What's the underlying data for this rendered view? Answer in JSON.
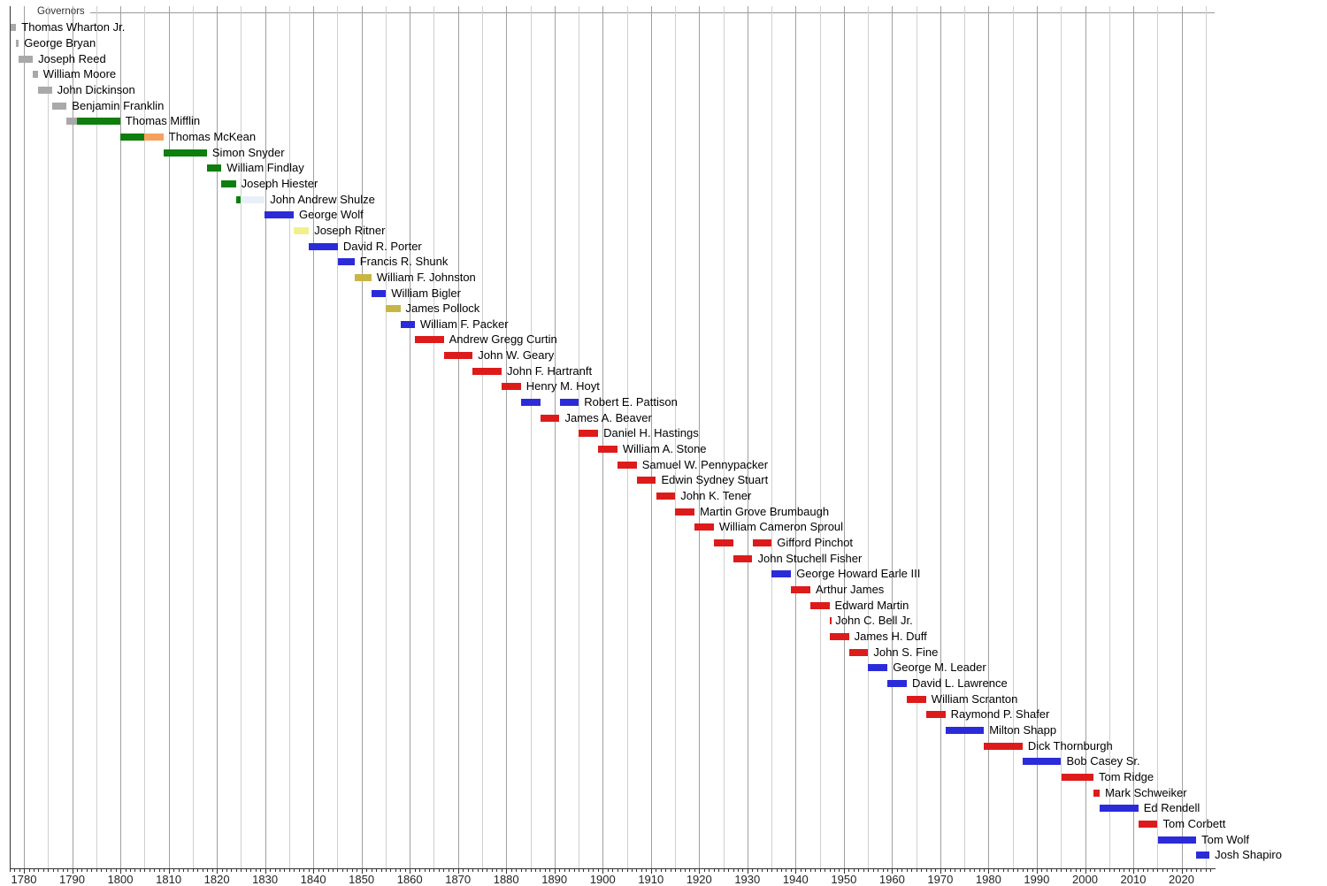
{
  "chart_data": {
    "type": "bar",
    "subtype": "timeline-gantt",
    "title": "Governors",
    "grid": true,
    "x_axis": {
      "min_year": 1777,
      "max_year": 2027,
      "gridline_interval_years": 5,
      "tick_interval_years": 1,
      "labels": [
        "1780",
        "1790",
        "1800",
        "1810",
        "1820",
        "1830",
        "1840",
        "1850",
        "1860",
        "1870",
        "1880",
        "1890",
        "1900",
        "1910",
        "1920",
        "1930",
        "1940",
        "1950",
        "1960",
        "1970",
        "1980",
        "1990",
        "2000",
        "2010",
        "2020"
      ]
    },
    "colors": {
      "gray": "#a9a9a9",
      "green": "#0e7e0e",
      "orange": "#f7a160",
      "pale_blue": "#e9eff7",
      "blue": "#2b2bd9",
      "pale_yellow": "#f1f08d",
      "dark_khaki": "#c9b545",
      "red": "#dd1b1b"
    },
    "governors": [
      {
        "name": "Thomas Wharton Jr.",
        "terms": [
          {
            "start": 1777.2,
            "end": 1778.4,
            "color": "gray"
          }
        ]
      },
      {
        "name": "George Bryan",
        "terms": [
          {
            "start": 1778.4,
            "end": 1778.95,
            "color": "gray"
          }
        ]
      },
      {
        "name": "Joseph Reed",
        "terms": [
          {
            "start": 1778.95,
            "end": 1781.85,
            "color": "gray"
          }
        ]
      },
      {
        "name": "William Moore",
        "terms": [
          {
            "start": 1781.85,
            "end": 1782.9,
            "color": "gray"
          }
        ]
      },
      {
        "name": "John Dickinson",
        "terms": [
          {
            "start": 1782.9,
            "end": 1785.8,
            "color": "gray"
          }
        ]
      },
      {
        "name": "Benjamin Franklin",
        "terms": [
          {
            "start": 1785.8,
            "end": 1788.85,
            "color": "gray"
          }
        ]
      },
      {
        "name": "Thomas Mifflin",
        "terms": [
          {
            "start": 1788.85,
            "end": 1790.95,
            "color": "gray"
          },
          {
            "start": 1790.95,
            "end": 1799.95,
            "color": "green"
          }
        ]
      },
      {
        "name": "Thomas McKean",
        "terms": [
          {
            "start": 1799.95,
            "end": 1805.0,
            "color": "green"
          },
          {
            "start": 1805.0,
            "end": 1808.95,
            "color": "orange"
          }
        ]
      },
      {
        "name": "Simon Snyder",
        "terms": [
          {
            "start": 1808.95,
            "end": 1817.95,
            "color": "green"
          }
        ]
      },
      {
        "name": "William Findlay",
        "terms": [
          {
            "start": 1817.95,
            "end": 1820.95,
            "color": "green"
          }
        ]
      },
      {
        "name": "Joseph Hiester",
        "terms": [
          {
            "start": 1820.95,
            "end": 1823.95,
            "color": "green"
          }
        ]
      },
      {
        "name": "John Andrew Shulze",
        "terms": [
          {
            "start": 1823.95,
            "end": 1824.95,
            "color": "green"
          },
          {
            "start": 1824.95,
            "end": 1829.95,
            "color": "pale_blue"
          }
        ]
      },
      {
        "name": "George Wolf",
        "terms": [
          {
            "start": 1829.95,
            "end": 1835.95,
            "color": "blue"
          }
        ]
      },
      {
        "name": "Joseph Ritner",
        "terms": [
          {
            "start": 1835.95,
            "end": 1839.1,
            "color": "pale_yellow"
          }
        ]
      },
      {
        "name": "David R. Porter",
        "terms": [
          {
            "start": 1839.1,
            "end": 1845.1,
            "color": "blue"
          }
        ]
      },
      {
        "name": "Francis R. Shunk",
        "terms": [
          {
            "start": 1845.1,
            "end": 1848.55,
            "color": "blue"
          }
        ]
      },
      {
        "name": "William F. Johnston",
        "terms": [
          {
            "start": 1848.55,
            "end": 1852.05,
            "color": "dark_khaki"
          }
        ]
      },
      {
        "name": "William Bigler",
        "terms": [
          {
            "start": 1852.05,
            "end": 1855.05,
            "color": "blue"
          }
        ]
      },
      {
        "name": "James Pollock",
        "terms": [
          {
            "start": 1855.05,
            "end": 1858.05,
            "color": "dark_khaki"
          }
        ]
      },
      {
        "name": "William F. Packer",
        "terms": [
          {
            "start": 1858.05,
            "end": 1861.05,
            "color": "blue"
          }
        ]
      },
      {
        "name": "Andrew Gregg Curtin",
        "terms": [
          {
            "start": 1861.05,
            "end": 1867.05,
            "color": "red"
          }
        ]
      },
      {
        "name": "John W. Geary",
        "terms": [
          {
            "start": 1867.05,
            "end": 1873.05,
            "color": "red"
          }
        ]
      },
      {
        "name": "John F. Hartranft",
        "terms": [
          {
            "start": 1873.05,
            "end": 1879.05,
            "color": "red"
          }
        ]
      },
      {
        "name": "Henry M. Hoyt",
        "terms": [
          {
            "start": 1879.05,
            "end": 1883.05,
            "color": "red"
          }
        ]
      },
      {
        "name": "Robert E. Pattison",
        "terms": [
          {
            "start": 1883.05,
            "end": 1887.05,
            "color": "blue"
          },
          {
            "start": 1891.05,
            "end": 1895.05,
            "color": "blue"
          }
        ]
      },
      {
        "name": "James A. Beaver",
        "terms": [
          {
            "start": 1887.05,
            "end": 1891.05,
            "color": "red"
          }
        ]
      },
      {
        "name": "Daniel H. Hastings",
        "terms": [
          {
            "start": 1895.05,
            "end": 1899.05,
            "color": "red"
          }
        ]
      },
      {
        "name": "William A. Stone",
        "terms": [
          {
            "start": 1899.05,
            "end": 1903.05,
            "color": "red"
          }
        ]
      },
      {
        "name": "Samuel W. Pennypacker",
        "terms": [
          {
            "start": 1903.05,
            "end": 1907.05,
            "color": "red"
          }
        ]
      },
      {
        "name": "Edwin Sydney Stuart",
        "terms": [
          {
            "start": 1907.05,
            "end": 1911.05,
            "color": "red"
          }
        ]
      },
      {
        "name": "John K. Tener",
        "terms": [
          {
            "start": 1911.05,
            "end": 1915.05,
            "color": "red"
          }
        ]
      },
      {
        "name": "Martin Grove Brumbaugh",
        "terms": [
          {
            "start": 1915.05,
            "end": 1919.05,
            "color": "red"
          }
        ]
      },
      {
        "name": "William Cameron Sproul",
        "terms": [
          {
            "start": 1919.05,
            "end": 1923.05,
            "color": "red"
          }
        ]
      },
      {
        "name": "Gifford Pinchot",
        "terms": [
          {
            "start": 1923.05,
            "end": 1927.05,
            "color": "red"
          },
          {
            "start": 1931.05,
            "end": 1935.05,
            "color": "red"
          }
        ]
      },
      {
        "name": "John Stuchell Fisher",
        "terms": [
          {
            "start": 1927.05,
            "end": 1931.05,
            "color": "red"
          }
        ]
      },
      {
        "name": "George Howard Earle III",
        "terms": [
          {
            "start": 1935.05,
            "end": 1939.05,
            "color": "blue"
          }
        ]
      },
      {
        "name": "Arthur James",
        "terms": [
          {
            "start": 1939.05,
            "end": 1943.05,
            "color": "red"
          }
        ]
      },
      {
        "name": "Edward Martin",
        "terms": [
          {
            "start": 1943.05,
            "end": 1947.0,
            "color": "red"
          }
        ]
      },
      {
        "name": "John C. Bell Jr.",
        "terms": [
          {
            "start": 1947.0,
            "end": 1947.15,
            "color": "red"
          }
        ]
      },
      {
        "name": "James H. Duff",
        "terms": [
          {
            "start": 1947.15,
            "end": 1951.05,
            "color": "red"
          }
        ]
      },
      {
        "name": "John S. Fine",
        "terms": [
          {
            "start": 1951.05,
            "end": 1955.05,
            "color": "red"
          }
        ]
      },
      {
        "name": "George M. Leader",
        "terms": [
          {
            "start": 1955.05,
            "end": 1959.05,
            "color": "blue"
          }
        ]
      },
      {
        "name": "David L. Lawrence",
        "terms": [
          {
            "start": 1959.05,
            "end": 1963.05,
            "color": "blue"
          }
        ]
      },
      {
        "name": "William Scranton",
        "terms": [
          {
            "start": 1963.05,
            "end": 1967.05,
            "color": "red"
          }
        ]
      },
      {
        "name": "Raymond P. Shafer",
        "terms": [
          {
            "start": 1967.05,
            "end": 1971.05,
            "color": "red"
          }
        ]
      },
      {
        "name": "Milton Shapp",
        "terms": [
          {
            "start": 1971.05,
            "end": 1979.05,
            "color": "blue"
          }
        ]
      },
      {
        "name": "Dick Thornburgh",
        "terms": [
          {
            "start": 1979.05,
            "end": 1987.05,
            "color": "red"
          }
        ]
      },
      {
        "name": "Bob Casey Sr.",
        "terms": [
          {
            "start": 1987.05,
            "end": 1995.05,
            "color": "blue"
          }
        ]
      },
      {
        "name": "Tom Ridge",
        "terms": [
          {
            "start": 1995.05,
            "end": 2001.75,
            "color": "red"
          }
        ]
      },
      {
        "name": "Mark Schweiker",
        "terms": [
          {
            "start": 2001.75,
            "end": 2003.05,
            "color": "red"
          }
        ]
      },
      {
        "name": "Ed Rendell",
        "terms": [
          {
            "start": 2003.05,
            "end": 2011.05,
            "color": "blue"
          }
        ]
      },
      {
        "name": "Tom Corbett",
        "terms": [
          {
            "start": 2011.05,
            "end": 2015.05,
            "color": "red"
          }
        ]
      },
      {
        "name": "Tom Wolf",
        "terms": [
          {
            "start": 2015.05,
            "end": 2023.05,
            "color": "blue"
          }
        ]
      },
      {
        "name": "Josh Shapiro",
        "terms": [
          {
            "start": 2023.05,
            "end": 2025.8,
            "color": "blue"
          }
        ]
      }
    ]
  }
}
